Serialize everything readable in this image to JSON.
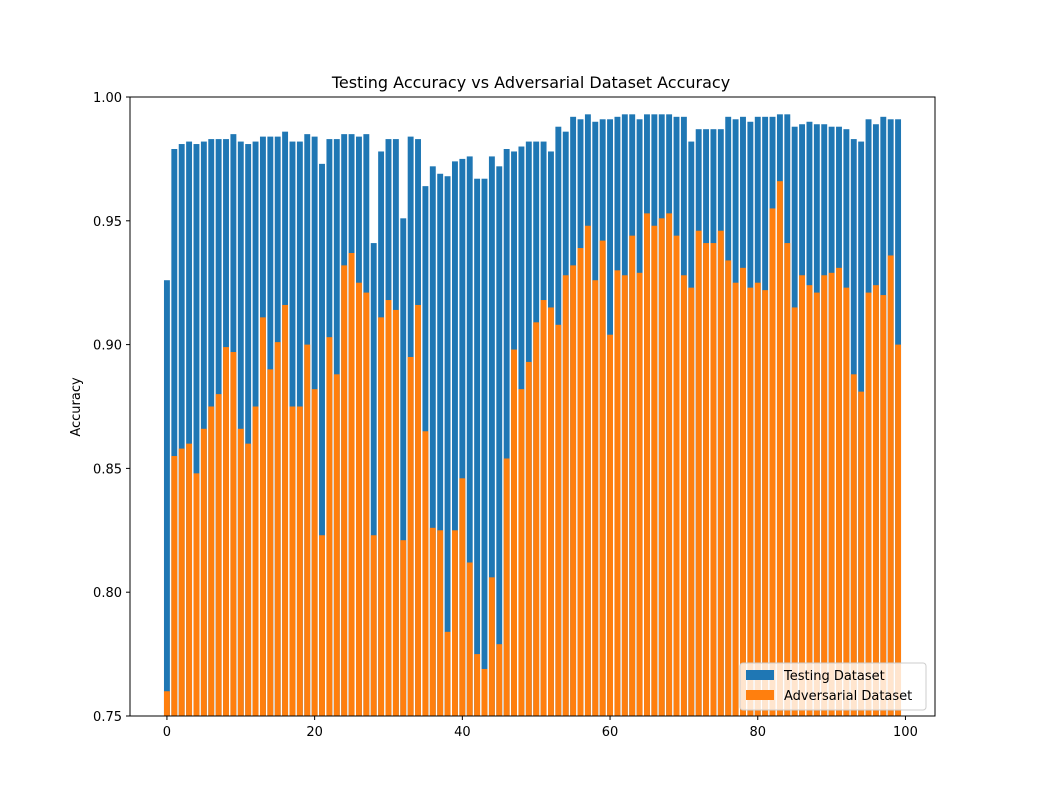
{
  "chart_data": {
    "type": "bar",
    "title": "Testing Accuracy vs Adversarial Dataset Accuracy",
    "xlabel": "",
    "ylabel": "Accuracy",
    "ylim": [
      0.75,
      1.0
    ],
    "xlim": [
      -5,
      104
    ],
    "xticks": [
      0,
      20,
      40,
      60,
      80,
      100
    ],
    "yticks": [
      0.75,
      0.8,
      0.85,
      0.9,
      0.95,
      1.0
    ],
    "ytick_labels": [
      "0.75",
      "0.80",
      "0.85",
      "0.90",
      "0.95",
      "1.00"
    ],
    "grid": false,
    "legend_position": "lower-right",
    "x": [
      0,
      1,
      2,
      3,
      4,
      5,
      6,
      7,
      8,
      9,
      10,
      11,
      12,
      13,
      14,
      15,
      16,
      17,
      18,
      19,
      20,
      21,
      22,
      23,
      24,
      25,
      26,
      27,
      28,
      29,
      30,
      31,
      32,
      33,
      34,
      35,
      36,
      37,
      38,
      39,
      40,
      41,
      42,
      43,
      44,
      45,
      46,
      47,
      48,
      49,
      50,
      51,
      52,
      53,
      54,
      55,
      56,
      57,
      58,
      59,
      60,
      61,
      62,
      63,
      64,
      65,
      66,
      67,
      68,
      69,
      70,
      71,
      72,
      73,
      74,
      75,
      76,
      77,
      78,
      79,
      80,
      81,
      82,
      83,
      84,
      85,
      86,
      87,
      88,
      89,
      90,
      91,
      92,
      93,
      94,
      95,
      96,
      97,
      98,
      99
    ],
    "series": [
      {
        "name": "Testing Dataset",
        "color": "#1f77b4",
        "values": [
          0.926,
          0.979,
          0.981,
          0.982,
          0.981,
          0.982,
          0.983,
          0.983,
          0.983,
          0.985,
          0.982,
          0.981,
          0.982,
          0.984,
          0.984,
          0.984,
          0.986,
          0.982,
          0.982,
          0.985,
          0.984,
          0.973,
          0.983,
          0.983,
          0.985,
          0.985,
          0.984,
          0.985,
          0.941,
          0.978,
          0.983,
          0.983,
          0.951,
          0.984,
          0.983,
          0.964,
          0.972,
          0.969,
          0.968,
          0.974,
          0.975,
          0.976,
          0.967,
          0.967,
          0.976,
          0.972,
          0.979,
          0.978,
          0.98,
          0.982,
          0.982,
          0.982,
          0.978,
          0.988,
          0.986,
          0.992,
          0.991,
          0.993,
          0.99,
          0.991,
          0.991,
          0.992,
          0.993,
          0.993,
          0.991,
          0.993,
          0.993,
          0.993,
          0.993,
          0.992,
          0.992,
          0.982,
          0.987,
          0.987,
          0.987,
          0.987,
          0.992,
          0.991,
          0.992,
          0.99,
          0.992,
          0.992,
          0.992,
          0.993,
          0.993,
          0.988,
          0.989,
          0.99,
          0.989,
          0.989,
          0.988,
          0.988,
          0.987,
          0.983,
          0.982,
          0.991,
          0.989,
          0.992,
          0.991,
          0.991
        ]
      },
      {
        "name": "Adversarial Dataset",
        "color": "#ff7f0e",
        "values": [
          0.76,
          0.855,
          0.858,
          0.86,
          0.848,
          0.866,
          0.875,
          0.88,
          0.899,
          0.897,
          0.866,
          0.86,
          0.875,
          0.911,
          0.89,
          0.901,
          0.916,
          0.875,
          0.875,
          0.9,
          0.882,
          0.823,
          0.903,
          0.888,
          0.932,
          0.937,
          0.925,
          0.921,
          0.823,
          0.911,
          0.918,
          0.914,
          0.821,
          0.895,
          0.916,
          0.865,
          0.826,
          0.825,
          0.784,
          0.825,
          0.846,
          0.812,
          0.775,
          0.769,
          0.806,
          0.779,
          0.854,
          0.898,
          0.882,
          0.893,
          0.909,
          0.918,
          0.915,
          0.908,
          0.928,
          0.932,
          0.939,
          0.948,
          0.926,
          0.942,
          0.904,
          0.93,
          0.928,
          0.944,
          0.929,
          0.953,
          0.948,
          0.951,
          0.953,
          0.944,
          0.928,
          0.923,
          0.946,
          0.941,
          0.941,
          0.946,
          0.934,
          0.925,
          0.931,
          0.923,
          0.925,
          0.922,
          0.955,
          0.966,
          0.941,
          0.915,
          0.928,
          0.924,
          0.921,
          0.928,
          0.929,
          0.931,
          0.923,
          0.888,
          0.881,
          0.921,
          0.924,
          0.92,
          0.936,
          0.9
        ]
      }
    ]
  }
}
